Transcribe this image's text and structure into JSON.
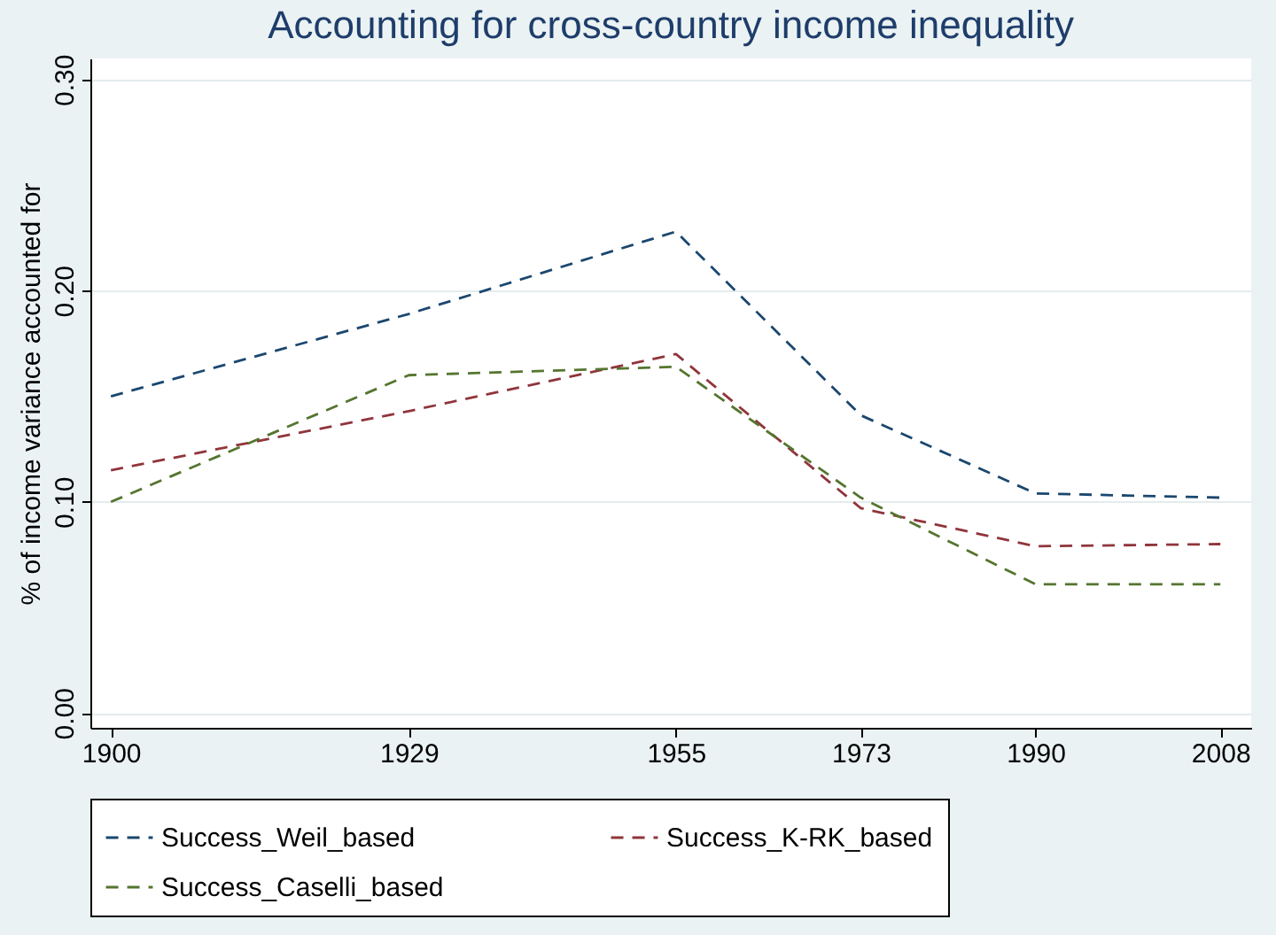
{
  "chart_data": {
    "type": "line",
    "title": "Accounting for cross-country income inequality",
    "ylabel": "% of income variance accounted for",
    "x": [
      1900,
      1929,
      1955,
      1973,
      1990,
      2008
    ],
    "series": [
      {
        "name": "Success_Weil_based",
        "color": "#1a476f",
        "values": [
          0.15,
          0.189,
          0.228,
          0.141,
          0.104,
          0.102
        ]
      },
      {
        "name": "Success_K-RK_based",
        "color": "#90353b",
        "values": [
          0.115,
          0.143,
          0.17,
          0.097,
          0.079,
          0.08
        ]
      },
      {
        "name": "Success_Caselli_based",
        "color": "#55752f",
        "values": [
          0.1,
          0.16,
          0.164,
          0.102,
          0.061,
          0.061
        ]
      }
    ],
    "xlim": [
      1898,
      2011
    ],
    "xticks": [
      1900,
      1929,
      1955,
      1973,
      1990,
      2008
    ],
    "ylim": [
      -0.007,
      0.31
    ],
    "yticks": [
      {
        "value": 0,
        "label": "0.00"
      },
      {
        "value": 0.1,
        "label": "0.10"
      },
      {
        "value": 0.2,
        "label": "0.20"
      },
      {
        "value": 0.3,
        "label": "0.30"
      }
    ],
    "grid": "y",
    "legend": "bottom",
    "line_style": "dashed",
    "marker": "none"
  }
}
